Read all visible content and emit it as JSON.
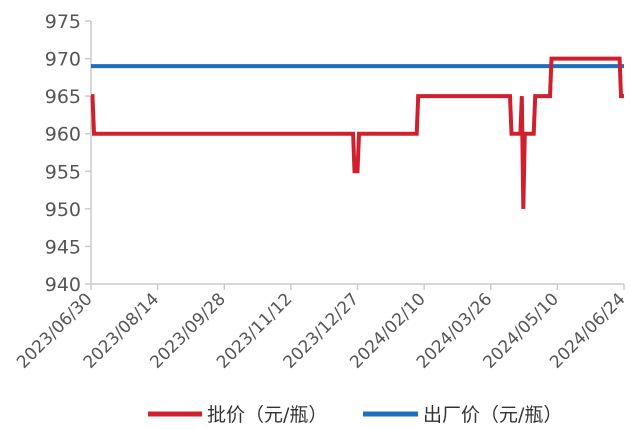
{
  "chart_data": {
    "type": "line",
    "title": "",
    "xlabel": "",
    "ylabel": "",
    "ylim": [
      940,
      975
    ],
    "yticks": [
      940,
      945,
      950,
      955,
      960,
      965,
      970,
      975
    ],
    "xlim": [
      "2023-06-30",
      "2024-06-24"
    ],
    "xtick_labels": [
      "2023/06/30",
      "2023/08/14",
      "2023/09/28",
      "2023/11/12",
      "2023/12/27",
      "2024/02/10",
      "2024/03/26",
      "2024/05/10",
      "2024/06/24"
    ],
    "grid": false,
    "legend_position": "bottom",
    "series": [
      {
        "name": "批价（元/瓶）",
        "color": "#d0202e",
        "points": [
          [
            "2023-06-30",
            965
          ],
          [
            "2023-07-01",
            965
          ],
          [
            "2023-07-02",
            960
          ],
          [
            "2023-12-24",
            960
          ],
          [
            "2023-12-25",
            955
          ],
          [
            "2023-12-27",
            955
          ],
          [
            "2023-12-28",
            960
          ],
          [
            "2024-02-05",
            960
          ],
          [
            "2024-02-06",
            965
          ],
          [
            "2024-04-08",
            965
          ],
          [
            "2024-04-09",
            960
          ],
          [
            "2024-04-15",
            960
          ],
          [
            "2024-04-16",
            965
          ],
          [
            "2024-04-17",
            950
          ],
          [
            "2024-04-18",
            960
          ],
          [
            "2024-04-24",
            960
          ],
          [
            "2024-04-25",
            965
          ],
          [
            "2024-05-05",
            965
          ],
          [
            "2024-05-06",
            970
          ],
          [
            "2024-06-21",
            970
          ],
          [
            "2024-06-22",
            965
          ],
          [
            "2024-06-24",
            965
          ]
        ]
      },
      {
        "name": "出厂价（元/瓶）",
        "color": "#1f6fbf",
        "points": [
          [
            "2023-06-30",
            969
          ],
          [
            "2024-06-24",
            969
          ]
        ]
      }
    ]
  }
}
